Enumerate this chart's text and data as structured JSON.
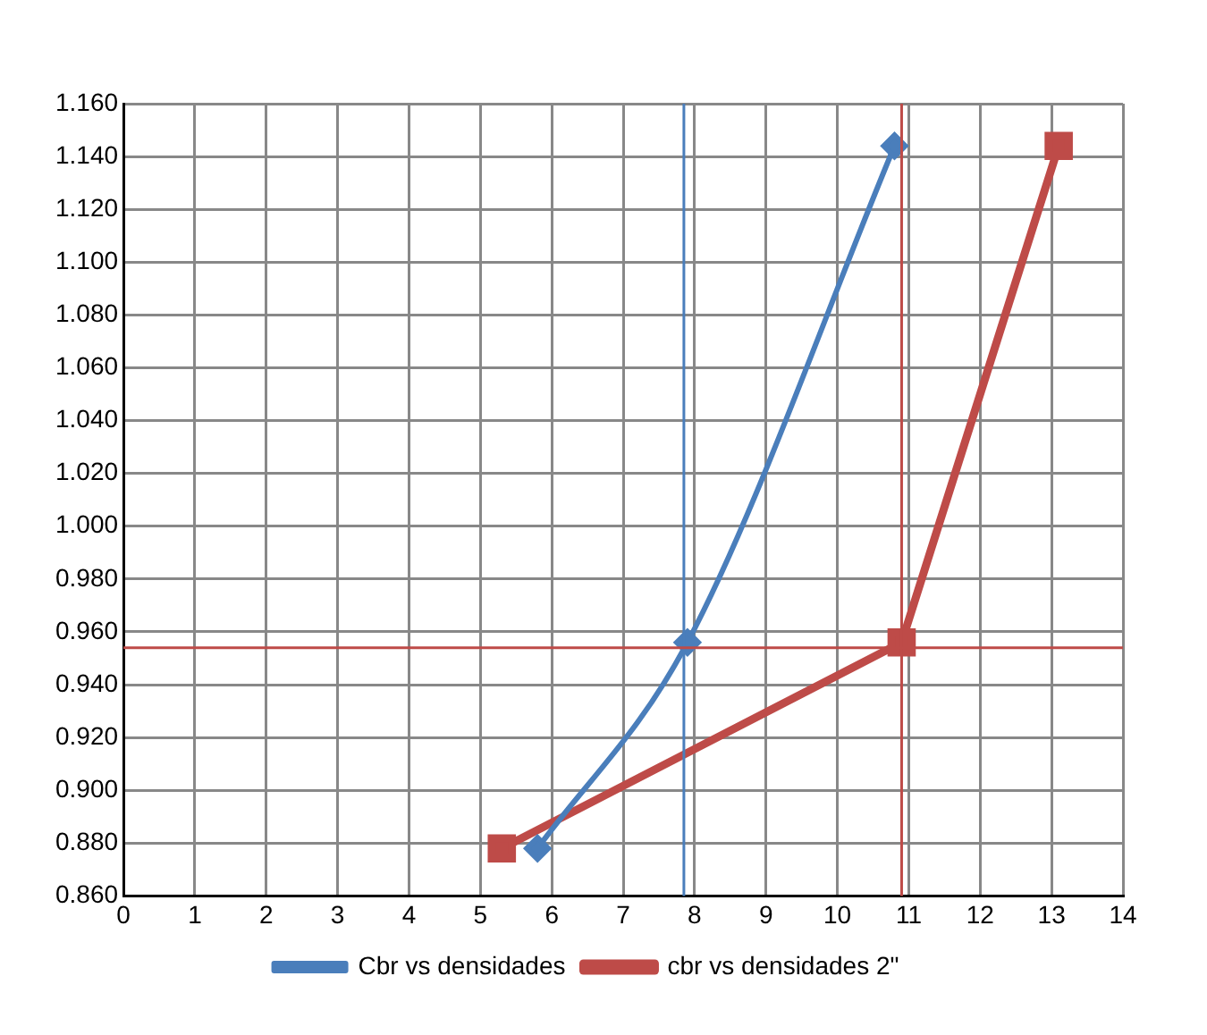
{
  "chart_data": {
    "type": "line",
    "xlim": [
      0,
      14
    ],
    "xticks": [
      0,
      1,
      2,
      3,
      4,
      5,
      6,
      7,
      8,
      9,
      10,
      11,
      12,
      13,
      14
    ],
    "ylim": [
      0.86,
      1.16
    ],
    "yticks": [
      {
        "value": 0.86,
        "label": "0.860"
      },
      {
        "value": 0.88,
        "label": "0.880"
      },
      {
        "value": 0.9,
        "label": "0.900"
      },
      {
        "value": 0.92,
        "label": "0.920"
      },
      {
        "value": 0.94,
        "label": "0.940"
      },
      {
        "value": 0.96,
        "label": "0.960"
      },
      {
        "value": 0.98,
        "label": "0.980"
      },
      {
        "value": 1.0,
        "label": "1.000"
      },
      {
        "value": 1.02,
        "label": "1.020"
      },
      {
        "value": 1.04,
        "label": "1.040"
      },
      {
        "value": 1.06,
        "label": "1.060"
      },
      {
        "value": 1.08,
        "label": "1.080"
      },
      {
        "value": 1.1,
        "label": "1.100"
      },
      {
        "value": 1.12,
        "label": "1.120"
      },
      {
        "value": 1.14,
        "label": "1.140"
      },
      {
        "value": 1.16,
        "label": "1.160"
      }
    ],
    "grid": true,
    "legend": "bottom",
    "series": [
      {
        "name": "Cbr vs densidades",
        "color": "#4a7ebb",
        "marker": "diamond",
        "x": [
          5.8,
          7.9,
          10.8
        ],
        "values": [
          0.878,
          0.956,
          1.144
        ]
      },
      {
        "name": "cbr vs densidades 2\"",
        "color": "#be4b48",
        "marker": "square",
        "x": [
          5.3,
          10.9,
          13.1
        ],
        "values": [
          0.878,
          0.956,
          1.144
        ]
      }
    ],
    "ref_lines": [
      {
        "axis": "x",
        "value": 7.85,
        "color": "#4a7ebb"
      },
      {
        "axis": "x",
        "value": 10.9,
        "color": "#be4b48"
      },
      {
        "axis": "y",
        "value": 0.954,
        "color": "#be4b48"
      }
    ]
  }
}
